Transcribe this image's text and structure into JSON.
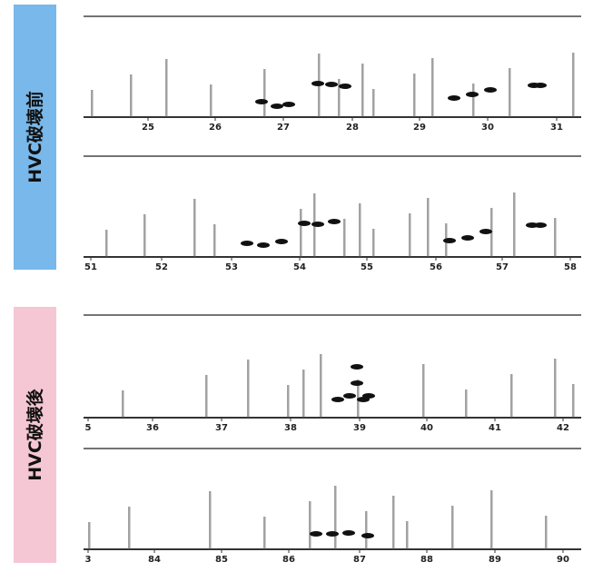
{
  "labels": {
    "before": "HVC破壊前",
    "after": "HVC破壊後"
  },
  "panels": [
    {
      "ticks": [
        "25",
        "26",
        "27",
        "28",
        "29",
        "30",
        "31"
      ]
    },
    {
      "ticks": [
        "51",
        "52",
        "53",
        "54",
        "55",
        "56",
        "57",
        "58"
      ]
    },
    {
      "ticks": [
        "5",
        "36",
        "37",
        "38",
        "39",
        "40",
        "41",
        "42"
      ]
    },
    {
      "ticks": [
        "3",
        "84",
        "85",
        "86",
        "87",
        "88",
        "89",
        "90"
      ]
    }
  ]
}
